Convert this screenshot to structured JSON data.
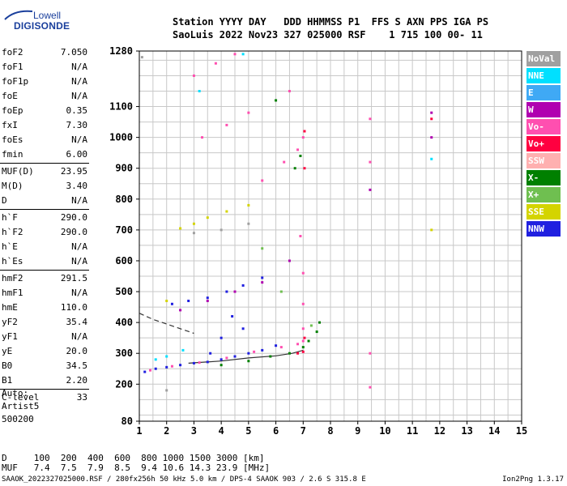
{
  "logo": {
    "line1": "Lowell",
    "line2": "DIGISONDE"
  },
  "header": {
    "row1": "Station YYYY DAY   DDD HHMMSS P1  FFS S AXN PPS IGA PS",
    "row2": "SaoLuis 2022 Nov23 327 025000 RSF    1 715 100 00- 11"
  },
  "params": [
    [
      {
        "label": "foF2",
        "value": "7.050"
      },
      {
        "label": "foF1",
        "value": "N/A"
      },
      {
        "label": "foF1p",
        "value": "N/A"
      },
      {
        "label": "foE",
        "value": "N/A"
      },
      {
        "label": "foEp",
        "value": "0.35"
      },
      {
        "label": "fxI",
        "value": "7.30"
      },
      {
        "label": "foEs",
        "value": "N/A"
      },
      {
        "label": "fmin",
        "value": "6.00"
      }
    ],
    [
      {
        "label": "MUF(D)",
        "value": "23.95"
      },
      {
        "label": "M(D)",
        "value": "3.40"
      },
      {
        "label": "D",
        "value": "N/A"
      }
    ],
    [
      {
        "label": "h`F",
        "value": "290.0"
      },
      {
        "label": "h`F2",
        "value": "290.0"
      },
      {
        "label": "h`E",
        "value": "N/A"
      },
      {
        "label": "h`Es",
        "value": "N/A"
      }
    ],
    [
      {
        "label": "hmF2",
        "value": "291.5"
      },
      {
        "label": "hmF1",
        "value": "N/A"
      },
      {
        "label": "hmE",
        "value": "110.0"
      },
      {
        "label": "yF2",
        "value": "35.4"
      },
      {
        "label": "yF1",
        "value": "N/A"
      },
      {
        "label": "yE",
        "value": "20.0"
      },
      {
        "label": "B0",
        "value": "34.5"
      },
      {
        "label": "B1",
        "value": "2.20"
      }
    ],
    [
      {
        "label": "C-level",
        "value": "33"
      }
    ]
  ],
  "params_extra": "Auto:\nArtist5\n500200",
  "legend": [
    {
      "label": "NoVal",
      "color": "#a0a0a0"
    },
    {
      "label": "NNE",
      "color": "#00e0ff"
    },
    {
      "label": "E",
      "color": "#3fa9f5"
    },
    {
      "label": "W",
      "color": "#b000b0"
    },
    {
      "label": "Vo-",
      "color": "#ff4fb0"
    },
    {
      "label": "Vo+",
      "color": "#ff0040"
    },
    {
      "label": "SSW",
      "color": "#ffb0b0"
    },
    {
      "label": "X-",
      "color": "#008000"
    },
    {
      "label": "X+",
      "color": "#6fbf50"
    },
    {
      "label": "SSE",
      "color": "#d4d400"
    },
    {
      "label": "NNW",
      "color": "#2020e0"
    }
  ],
  "muf_table": {
    "row1": "D     100  200  400  600  800 1000 1500 3000 [km]",
    "row2": "MUF   7.4  7.5  7.9  8.5  9.4 10.6 14.3 23.9 [MHz]"
  },
  "footer": "SAAOK_2022327025000.RSF / 280fx256h 50 kHz 5.0 km / DPS-4 SAAOK 903 / 2.6 S 315.8 E",
  "footer_version": "Ion2Png 1.3.17",
  "chart_data": {
    "type": "scatter",
    "xlim": [
      1,
      15
    ],
    "ylim": [
      80,
      1280
    ],
    "x_ticks": [
      1,
      2,
      3,
      4,
      5,
      6,
      7,
      8,
      9,
      10,
      11,
      12,
      13,
      14,
      15
    ],
    "y_ticks": [
      80,
      200,
      300,
      400,
      500,
      600,
      700,
      800,
      900,
      1000,
      1100,
      1280
    ],
    "grid": true,
    "series": [
      {
        "color": "#2020e0",
        "points": [
          [
            1.2,
            240
          ],
          [
            1.6,
            250
          ],
          [
            2.0,
            255
          ],
          [
            2.5,
            262
          ],
          [
            3.0,
            268
          ],
          [
            3.5,
            272
          ],
          [
            4.0,
            280
          ],
          [
            4.5,
            290
          ],
          [
            5.0,
            300
          ],
          [
            5.5,
            310
          ],
          [
            6.0,
            325
          ],
          [
            2.2,
            460
          ],
          [
            2.8,
            470
          ],
          [
            3.5,
            480
          ],
          [
            4.2,
            500
          ],
          [
            4.8,
            520
          ],
          [
            5.5,
            545
          ],
          [
            3.6,
            300
          ],
          [
            4.0,
            350
          ],
          [
            4.4,
            420
          ],
          [
            4.8,
            380
          ]
        ]
      },
      {
        "color": "#ff4fb0",
        "points": [
          [
            1.4,
            245
          ],
          [
            2.2,
            258
          ],
          [
            3.2,
            270
          ],
          [
            4.2,
            285
          ],
          [
            5.2,
            305
          ],
          [
            6.2,
            320
          ],
          [
            6.8,
            330
          ],
          [
            7.0,
            340
          ],
          [
            7.0,
            380
          ],
          [
            7.0,
            460
          ],
          [
            7.0,
            560
          ],
          [
            6.9,
            680
          ],
          [
            7.0,
            1000
          ],
          [
            9.45,
            1060
          ],
          [
            9.45,
            920
          ],
          [
            9.45,
            300
          ],
          [
            9.45,
            190
          ],
          [
            3.0,
            1200
          ],
          [
            3.8,
            1240
          ],
          [
            4.5,
            1270
          ],
          [
            3.3,
            1000
          ],
          [
            4.2,
            1040
          ],
          [
            5.0,
            1080
          ],
          [
            6.5,
            1150
          ],
          [
            5.5,
            860
          ],
          [
            6.3,
            920
          ],
          [
            6.8,
            960
          ]
        ]
      },
      {
        "color": "#008000",
        "points": [
          [
            4.0,
            262
          ],
          [
            5.0,
            275
          ],
          [
            5.8,
            290
          ],
          [
            6.5,
            300
          ],
          [
            7.0,
            320
          ],
          [
            7.2,
            340
          ],
          [
            7.5,
            370
          ],
          [
            7.6,
            400
          ],
          [
            6.7,
            900
          ],
          [
            6.9,
            940
          ],
          [
            6.0,
            1120
          ]
        ]
      },
      {
        "color": "#b000b0",
        "points": [
          [
            2.5,
            440
          ],
          [
            3.5,
            470
          ],
          [
            4.5,
            500
          ],
          [
            5.5,
            530
          ],
          [
            6.5,
            600
          ],
          [
            11.7,
            1080
          ],
          [
            11.7,
            1000
          ],
          [
            9.45,
            830
          ]
        ]
      },
      {
        "color": "#ff0040",
        "points": [
          [
            6.8,
            300
          ],
          [
            7.0,
            305
          ],
          [
            7.05,
            350
          ],
          [
            7.05,
            900
          ],
          [
            7.05,
            1020
          ],
          [
            11.7,
            1060
          ]
        ]
      },
      {
        "color": "#00e0ff",
        "points": [
          [
            1.6,
            280
          ],
          [
            2.0,
            290
          ],
          [
            2.6,
            310
          ],
          [
            3.2,
            1150
          ],
          [
            4.8,
            1270
          ],
          [
            11.7,
            930
          ]
        ]
      },
      {
        "color": "#d4d400",
        "points": [
          [
            2.0,
            470
          ],
          [
            2.5,
            705
          ],
          [
            3.0,
            720
          ],
          [
            3.5,
            740
          ],
          [
            4.2,
            760
          ],
          [
            5.0,
            780
          ],
          [
            11.7,
            700
          ]
        ]
      },
      {
        "color": "#a0a0a0",
        "points": [
          [
            1.1,
            1260
          ],
          [
            2.0,
            180
          ],
          [
            3.0,
            690
          ],
          [
            4.0,
            700
          ],
          [
            5.0,
            720
          ]
        ]
      },
      {
        "color": "#6fbf50",
        "points": [
          [
            6.2,
            500
          ],
          [
            7.3,
            390
          ],
          [
            5.5,
            640
          ]
        ]
      }
    ],
    "curves": [
      {
        "style": "dashed",
        "points": [
          [
            1.0,
            430
          ],
          [
            1.5,
            410
          ],
          [
            2.0,
            395
          ],
          [
            2.5,
            380
          ],
          [
            3.0,
            365
          ]
        ]
      },
      {
        "style": "solid",
        "points": [
          [
            2.8,
            268
          ],
          [
            4.0,
            275
          ],
          [
            5.0,
            285
          ],
          [
            6.0,
            292
          ],
          [
            6.6,
            300
          ],
          [
            7.0,
            310
          ]
        ]
      }
    ]
  }
}
